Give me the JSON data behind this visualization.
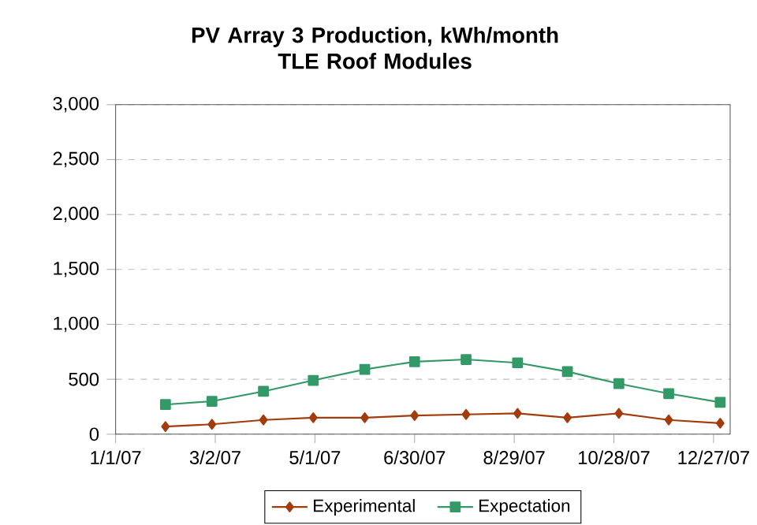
{
  "chart_data": {
    "type": "line",
    "title": "PV Array 3 Production, kWh/month\nTLE Roof Modules",
    "x": [
      "2007-01-31",
      "2007-02-28",
      "2007-03-31",
      "2007-04-30",
      "2007-05-31",
      "2007-06-30",
      "2007-07-31",
      "2007-08-31",
      "2007-09-30",
      "2007-10-31",
      "2007-11-30",
      "2007-12-31"
    ],
    "series": [
      {
        "name": "Experimental",
        "color": "#a33c0c",
        "marker": "diamond",
        "values": [
          70,
          90,
          130,
          150,
          150,
          170,
          180,
          190,
          150,
          190,
          130,
          100
        ]
      },
      {
        "name": "Expectation",
        "color": "#339966",
        "marker": "square",
        "values": [
          270,
          300,
          390,
          490,
          590,
          660,
          680,
          650,
          570,
          460,
          370,
          290
        ]
      }
    ],
    "xlim": [
      "2007-01-01",
      "2008-01-06"
    ],
    "xticks": [
      {
        "value": "2007-01-01",
        "label": "1/1/07"
      },
      {
        "value": "2007-03-02",
        "label": "3/2/07"
      },
      {
        "value": "2007-05-01",
        "label": "5/1/07"
      },
      {
        "value": "2007-06-30",
        "label": "6/30/07"
      },
      {
        "value": "2007-08-29",
        "label": "8/29/07"
      },
      {
        "value": "2007-10-28",
        "label": "10/28/07"
      },
      {
        "value": "2007-12-27",
        "label": "12/27/07"
      }
    ],
    "ylim": [
      0,
      3000
    ],
    "yticks": [
      0,
      {
        "value": 500,
        "label": "500"
      },
      {
        "value": 1000,
        "label": "1,000"
      },
      {
        "value": 1500,
        "label": "1,500"
      },
      {
        "value": 2000,
        "label": "2,000"
      },
      {
        "value": 2500,
        "label": "2,500"
      },
      {
        "value": 3000,
        "label": "3,000"
      }
    ],
    "grid": "y",
    "legend": "bottom",
    "line_style": "solid"
  }
}
